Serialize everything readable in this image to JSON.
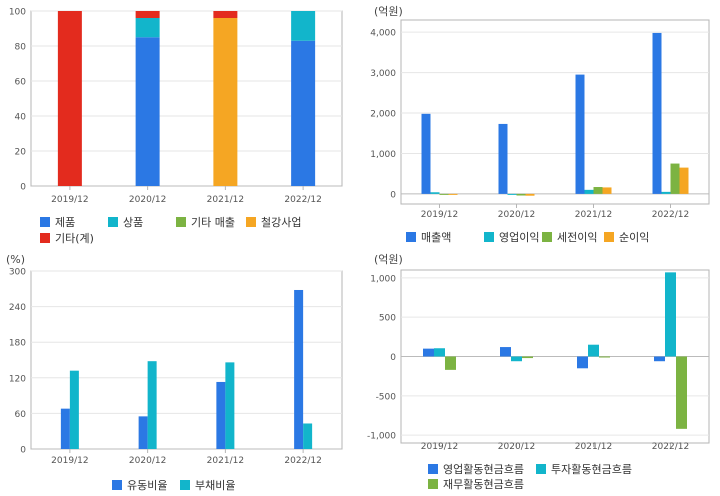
{
  "chart_data": [
    {
      "id": "sales-mix",
      "type": "bar",
      "stacked": true,
      "unit": "",
      "categories": [
        "2019/12",
        "2020/12",
        "2021/12",
        "2022/12"
      ],
      "ylim": [
        0,
        100
      ],
      "yticks": [
        0,
        20,
        40,
        60,
        80,
        100
      ],
      "ytick_labels": [
        "0",
        "20",
        "40",
        "60",
        "80",
        "100"
      ],
      "grid": true,
      "legend_position": "bottom",
      "series": [
        {
          "name": "제품",
          "color": "#2b78e4",
          "values": [
            0,
            85,
            0,
            83
          ]
        },
        {
          "name": "상품",
          "color": "#12b5cb",
          "values": [
            0,
            11,
            0,
            17
          ]
        },
        {
          "name": "기타 매출",
          "color": "#7cb342",
          "values": [
            0,
            0,
            0,
            0
          ]
        },
        {
          "name": "철강사업",
          "color": "#f5a623",
          "values": [
            0,
            0,
            96,
            0
          ]
        },
        {
          "name": "기타(계)",
          "color": "#e32b1e",
          "values": [
            100,
            4,
            4,
            0
          ]
        }
      ]
    },
    {
      "id": "income",
      "type": "bar",
      "unit": "(억원)",
      "categories": [
        "2019/12",
        "2020/12",
        "2021/12",
        "2022/12"
      ],
      "ylim": [
        -250,
        4300
      ],
      "yticks": [
        0,
        1000,
        2000,
        3000,
        4000
      ],
      "ytick_labels": [
        "0",
        "1,000",
        "2,000",
        "3,000",
        "4,000"
      ],
      "grid": true,
      "legend_position": "bottom",
      "series": [
        {
          "name": "매출액",
          "color": "#2b78e4",
          "values": [
            1980,
            1730,
            2950,
            3980
          ]
        },
        {
          "name": "영업이익",
          "color": "#12b5cb",
          "values": [
            40,
            -10,
            100,
            50
          ]
        },
        {
          "name": "세전이익",
          "color": "#7cb342",
          "values": [
            -10,
            -40,
            170,
            750
          ]
        },
        {
          "name": "순이익",
          "color": "#f5a623",
          "values": [
            -5,
            -45,
            160,
            650
          ]
        }
      ]
    },
    {
      "id": "ratios",
      "type": "bar",
      "unit": "(%)",
      "categories": [
        "2019/12",
        "2020/12",
        "2021/12",
        "2022/12"
      ],
      "ylim": [
        0,
        300
      ],
      "yticks": [
        0,
        60,
        120,
        180,
        240,
        300
      ],
      "ytick_labels": [
        "0",
        "60",
        "120",
        "180",
        "240",
        "300"
      ],
      "grid": true,
      "legend_position": "bottom",
      "series": [
        {
          "name": "유동비율",
          "color": "#2b78e4",
          "values": [
            68,
            55,
            113,
            268
          ]
        },
        {
          "name": "부채비율",
          "color": "#12b5cb",
          "values": [
            132,
            148,
            146,
            43
          ]
        }
      ]
    },
    {
      "id": "cashflow",
      "type": "bar",
      "unit": "(억원)",
      "categories": [
        "2019/12",
        "2020/12",
        "2021/12",
        "2022/12"
      ],
      "ylim": [
        -1100,
        1100
      ],
      "yticks": [
        -1000,
        -500,
        0,
        500,
        1000
      ],
      "ytick_labels": [
        "-1,000",
        "-500",
        "0",
        "500",
        "1,000"
      ],
      "grid": true,
      "legend_position": "bottom",
      "series": [
        {
          "name": "영업활동현금흐름",
          "color": "#2b78e4",
          "values": [
            100,
            120,
            -150,
            -60
          ]
        },
        {
          "name": "투자활동현금흐름",
          "color": "#12b5cb",
          "values": [
            105,
            -60,
            150,
            1070
          ]
        },
        {
          "name": "재무활동현금흐름",
          "color": "#7cb342",
          "values": [
            -170,
            -20,
            -10,
            -920
          ]
        }
      ]
    }
  ]
}
